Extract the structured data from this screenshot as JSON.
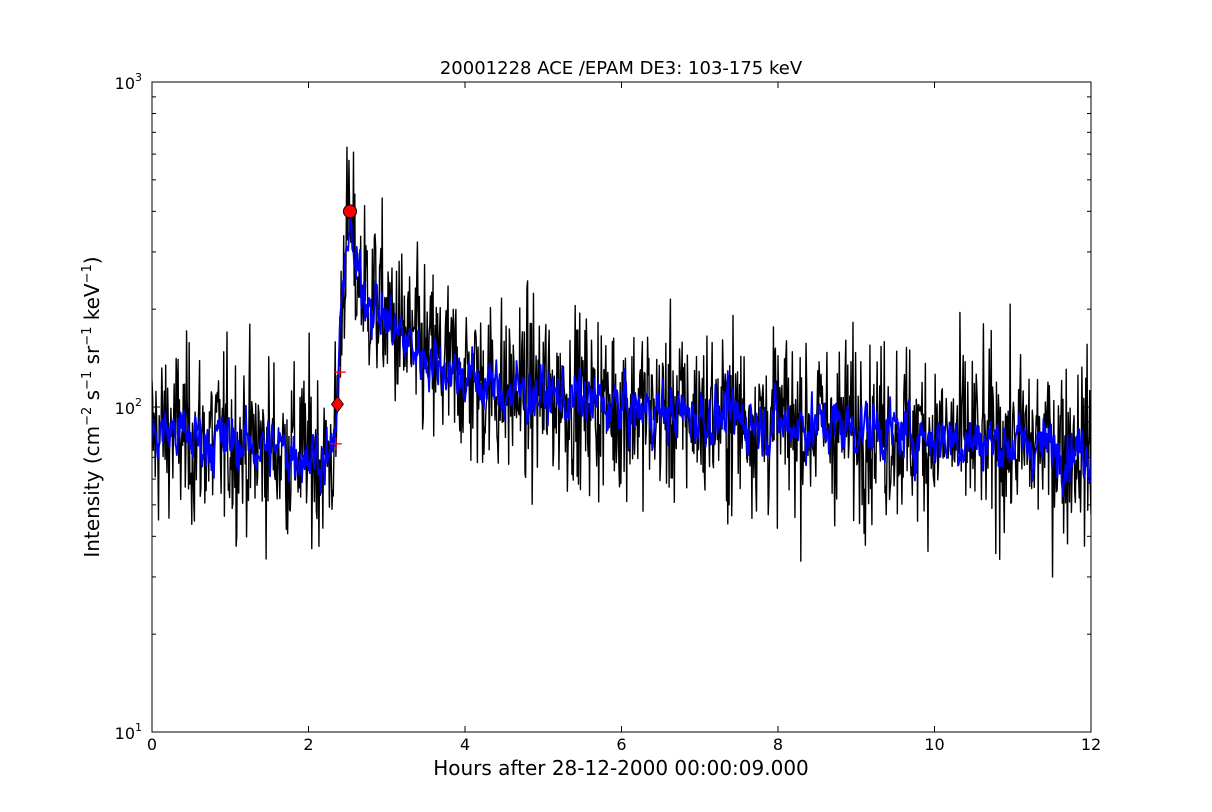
{
  "chart_data": {
    "type": "line",
    "title": "20001228 ACE /EPAM DE3: 103-175 keV",
    "xlabel": "Hours after 28-12-2000 00:00:09.000",
    "ylabel": "Intensity (cm⁻² s⁻¹ sr⁻¹ keV⁻¹)",
    "ylabel_parts": {
      "prefix": "Intensity (cm",
      "exp1": "−2",
      "s": " s",
      "exp2": "−1",
      "sr": " sr",
      "exp3": "−1",
      "kev": " keV",
      "exp4": "−1",
      "suffix": ")"
    },
    "xlim": [
      0,
      12
    ],
    "ylim": [
      10,
      1000
    ],
    "yscale": "log",
    "grid": false,
    "x_ticks": [
      0,
      2,
      4,
      6,
      8,
      10,
      12
    ],
    "x_tick_labels": [
      "0",
      "2",
      "4",
      "6",
      "8",
      "10",
      "12"
    ],
    "y_ticks": [
      10,
      100,
      1000
    ],
    "y_tick_labels": [
      {
        "base": "10",
        "exp": "1"
      },
      {
        "base": "10",
        "exp": "2"
      },
      {
        "base": "10",
        "exp": "3"
      }
    ],
    "series": [
      {
        "color": "#000000",
        "style": "raw",
        "keypoints": [
          [
            0,
            80
          ],
          [
            0.2,
            85
          ],
          [
            0.5,
            80
          ],
          [
            1.0,
            78
          ],
          [
            1.5,
            75
          ],
          [
            2.0,
            72
          ],
          [
            2.3,
            70
          ],
          [
            2.35,
            85
          ],
          [
            2.4,
            150
          ],
          [
            2.45,
            280
          ],
          [
            2.5,
            360
          ],
          [
            2.55,
            340
          ],
          [
            2.6,
            260
          ],
          [
            2.8,
            220
          ],
          [
            3.0,
            190
          ],
          [
            3.2,
            165
          ],
          [
            3.5,
            145
          ],
          [
            4.0,
            125
          ],
          [
            4.5,
            112
          ],
          [
            5.0,
            110
          ],
          [
            5.5,
            105
          ],
          [
            6.0,
            100
          ],
          [
            7.0,
            95
          ],
          [
            8.0,
            90
          ],
          [
            9.0,
            88
          ],
          [
            10.0,
            82
          ],
          [
            11.0,
            78
          ],
          [
            12.0,
            75
          ]
        ]
      },
      {
        "color": "#0000ff",
        "style": "smoothed",
        "keypoints": [
          [
            0,
            80
          ],
          [
            0.2,
            85
          ],
          [
            0.5,
            80
          ],
          [
            1.0,
            78
          ],
          [
            1.5,
            75
          ],
          [
            2.0,
            72
          ],
          [
            2.3,
            70
          ],
          [
            2.35,
            85
          ],
          [
            2.4,
            150
          ],
          [
            2.45,
            280
          ],
          [
            2.5,
            340
          ],
          [
            2.55,
            320
          ],
          [
            2.6,
            255
          ],
          [
            2.8,
            215
          ],
          [
            3.0,
            185
          ],
          [
            3.2,
            162
          ],
          [
            3.5,
            143
          ],
          [
            4.0,
            124
          ],
          [
            4.5,
            111
          ],
          [
            5.0,
            109
          ],
          [
            5.5,
            104
          ],
          [
            6.0,
            99
          ],
          [
            7.0,
            94
          ],
          [
            8.0,
            89
          ],
          [
            9.0,
            87
          ],
          [
            10.0,
            81
          ],
          [
            11.0,
            77
          ],
          [
            12.0,
            74
          ]
        ]
      }
    ],
    "markers": [
      {
        "shape": "circle",
        "color": "#ff0000",
        "x": 2.53,
        "y": 400
      },
      {
        "shape": "diamond",
        "color": "#ff0000",
        "x": 2.37,
        "y": 102
      },
      {
        "shape": "plus",
        "color": "#ff0000",
        "x": 2.4,
        "y": 128
      },
      {
        "shape": "plus",
        "color": "#ff0000",
        "x": 2.35,
        "y": 77
      }
    ]
  }
}
